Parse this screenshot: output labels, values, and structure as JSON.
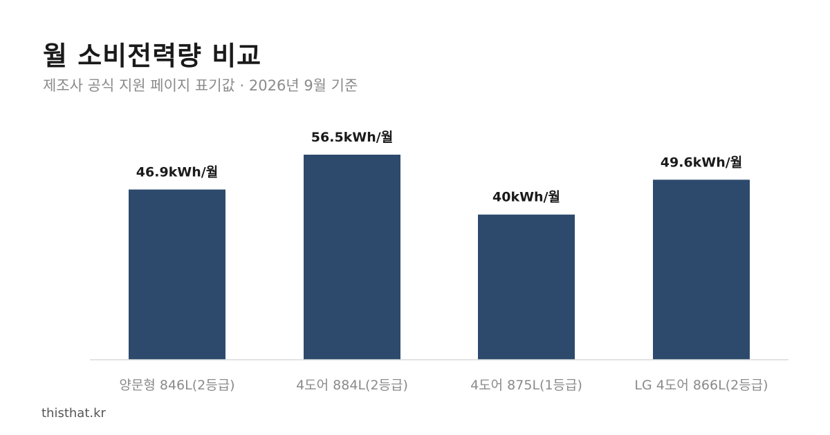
{
  "header": {
    "title": "월 소비전력량 비교",
    "subtitle": "제조사 공식 지원 페이지 표기값 · 2026년 9월 기준"
  },
  "footer": {
    "source": "thisthat.kr"
  },
  "colors": {
    "bar": "#2d4a6d",
    "axis": "#d9d9d9"
  },
  "chart_data": {
    "type": "bar",
    "title": "월 소비전력량 비교",
    "subtitle": "제조사 공식 지원 페이지 표기값 · 2026년 9월 기준",
    "categories": [
      "양문형 846L(2등급)",
      "4도어 884L(2등급)",
      "4도어 875L(1등급)",
      "LG 4도어 866L(2등급)"
    ],
    "values": [
      46.9,
      56.5,
      40,
      49.6
    ],
    "value_labels": [
      "46.9kWh/월",
      "56.5kWh/월",
      "40kWh/월",
      "49.6kWh/월"
    ],
    "unit": "kWh/월",
    "xlabel": "",
    "ylabel": "",
    "ylim": [
      0,
      60
    ],
    "grid": false,
    "legend": "none"
  }
}
